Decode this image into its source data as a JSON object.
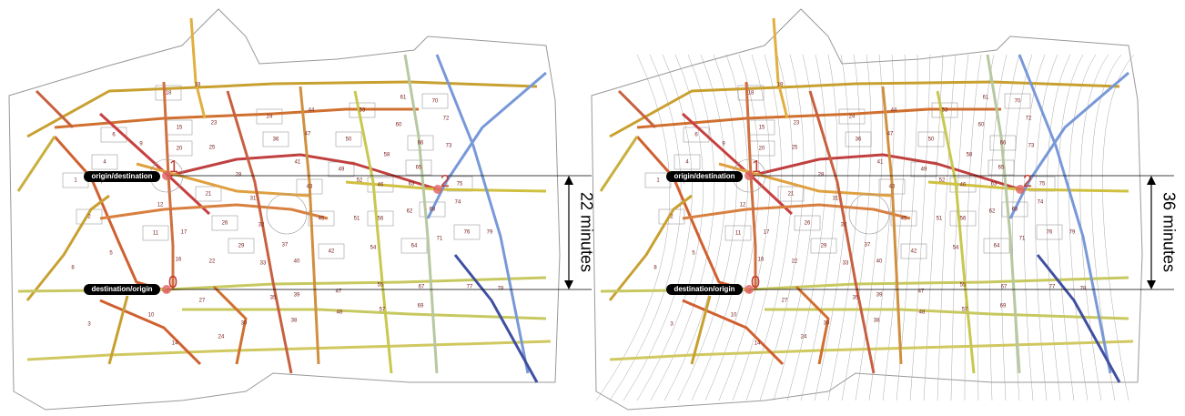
{
  "maps": [
    {
      "origin_label": "origin/destination",
      "destination_label": "destination/origin",
      "point_1": "1",
      "point_0": "0",
      "point_2": "2",
      "travel_time": "22 minutes"
    },
    {
      "origin_label": "origin/destination",
      "destination_label": "destination/origin",
      "point_1": "1",
      "point_0": "0",
      "point_2": "2",
      "travel_time": "36 minutes"
    }
  ],
  "blocks": [
    "18",
    "19",
    "24",
    "44",
    "53",
    "61",
    "70",
    "72",
    "6",
    "9",
    "15",
    "23",
    "36",
    "47",
    "50",
    "60",
    "66",
    "73",
    "4",
    "25",
    "20",
    "41",
    "49",
    "58",
    "65",
    "28",
    "1",
    "7",
    "21",
    "31",
    "43",
    "52",
    "46",
    "63",
    "75",
    "74",
    "2",
    "12",
    "11",
    "17",
    "26",
    "32",
    "45",
    "51",
    "56",
    "62",
    "68",
    "5",
    "29",
    "37",
    "42",
    "54",
    "64",
    "71",
    "76",
    "79",
    "8",
    "16",
    "22",
    "33",
    "40",
    "35",
    "39",
    "47",
    "55",
    "67",
    "77",
    "78",
    "3",
    "10",
    "27",
    "30",
    "38",
    "48",
    "57",
    "69",
    "14",
    "24"
  ]
}
